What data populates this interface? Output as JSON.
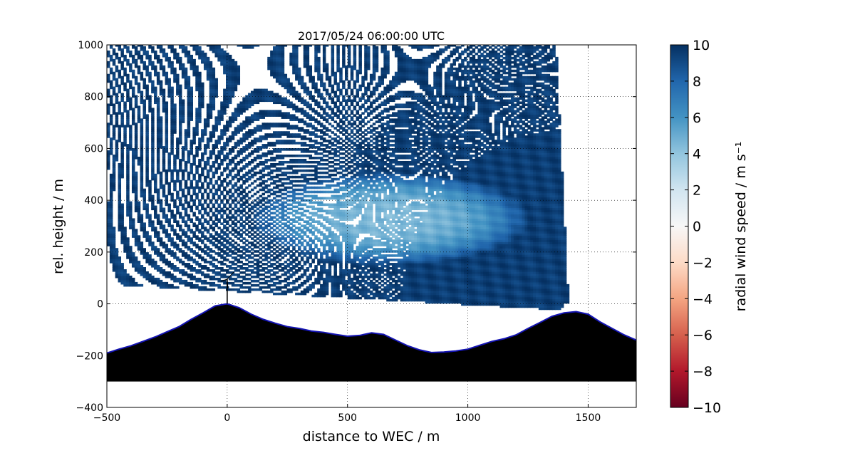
{
  "chart_data": {
    "type": "heatmap",
    "title": "2017/05/24 06:00:00 UTC",
    "xlabel": "distance to WEC / m",
    "ylabel": "rel. height / m",
    "xlim": [
      -500,
      1700
    ],
    "ylim": [
      -400,
      1000
    ],
    "xticks": [
      -500,
      0,
      500,
      1000,
      1500
    ],
    "xtick_labels": [
      "−500",
      "0",
      "500",
      "1000",
      "1500"
    ],
    "yticks": [
      -400,
      -200,
      0,
      200,
      400,
      600,
      800,
      1000
    ],
    "ytick_labels": [
      "−400",
      "−200",
      "0",
      "200",
      "400",
      "600",
      "800",
      "1000"
    ],
    "grid": "dotted",
    "colormap": "RdBu",
    "colorbar": {
      "label": "radial wind speed / m s⁻¹",
      "range": [
        -10,
        10
      ],
      "ticks": [
        -10,
        -8,
        -6,
        -4,
        -2,
        0,
        2,
        4,
        6,
        8,
        10
      ],
      "tick_labels": [
        "−10",
        "−8",
        "−6",
        "−4",
        "−2",
        "0",
        "2",
        "4",
        "6",
        "8",
        "10"
      ]
    },
    "lidar_origin": [
      1420,
      -25
    ],
    "scan_max_angle_deg": 177,
    "scan_min_angle_deg": 93,
    "background_speed": 9.5,
    "low_speed_region": {
      "x_range": [
        100,
        1260
      ],
      "y_range": [
        150,
        510
      ],
      "min_speed": 4.5
    },
    "turbine_position": [
      0,
      0
    ],
    "terrain_profile": {
      "x": [
        -500,
        -450,
        -400,
        -350,
        -300,
        -250,
        -200,
        -150,
        -100,
        -50,
        0,
        50,
        100,
        150,
        200,
        250,
        300,
        350,
        400,
        450,
        500,
        550,
        600,
        650,
        700,
        750,
        800,
        850,
        900,
        950,
        1000,
        1050,
        1100,
        1150,
        1200,
        1250,
        1300,
        1350,
        1400,
        1450,
        1500,
        1550,
        1600,
        1650,
        1700
      ],
      "y": [
        -190,
        -175,
        -162,
        -145,
        -128,
        -108,
        -88,
        -60,
        -35,
        -8,
        0,
        -15,
        -40,
        -60,
        -75,
        -88,
        -95,
        -105,
        -110,
        -118,
        -125,
        -122,
        -112,
        -118,
        -140,
        -162,
        -178,
        -188,
        -186,
        -182,
        -175,
        -160,
        -145,
        -135,
        -120,
        -95,
        -72,
        -48,
        -35,
        -30,
        -40,
        -70,
        -95,
        -120,
        -140
      ]
    },
    "terrain_floor": -300
  },
  "colors": {
    "terrain_fill": "#000000",
    "terrain_outline": "#1414b4",
    "background": "#ffffff"
  }
}
